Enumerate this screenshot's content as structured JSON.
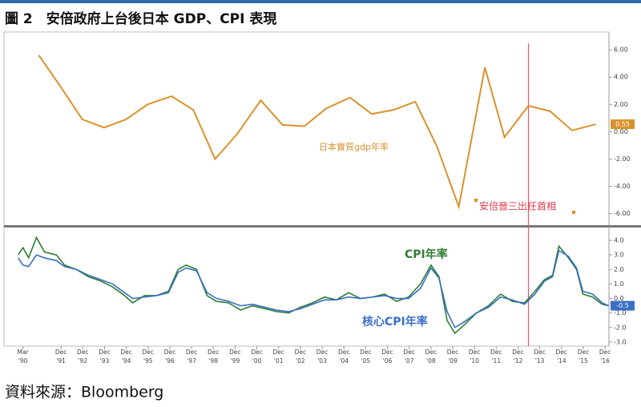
{
  "title": "圖 2　安倍政府上台後日本 GDP、CPI 表現",
  "source": "資料來源：Bloomberg",
  "chart_data": [
    {
      "type": "line",
      "x": [
        1990.9,
        1991.9,
        1992.9,
        1993.9,
        1994.9,
        1995.9,
        1997.0,
        1998.0,
        1999.0,
        2000.0,
        2001.1,
        2002.1,
        2003.1,
        2004.1,
        2005.2,
        2006.2,
        2007.2,
        2008.2,
        2009.2,
        2010.2,
        2011.4,
        2012.3,
        2013.4,
        2014.4,
        2015.4,
        2016.5
      ],
      "series": [
        {
          "name": "日本實質gdp年率",
          "color": "#d9922e",
          "values": [
            5.6,
            3.3,
            0.9,
            0.3,
            0.9,
            2.0,
            2.6,
            1.6,
            -2.0,
            -0.2,
            2.3,
            0.5,
            0.4,
            1.7,
            2.5,
            1.3,
            1.6,
            2.2,
            -1.1,
            -5.5,
            4.7,
            -0.4,
            1.9,
            1.5,
            0.1,
            0.55
          ]
        }
      ],
      "xlim": [
        1989.3,
        2017.1
      ],
      "ylim": [
        -6.9,
        7.3
      ],
      "yticks": [
        {
          "value": 6,
          "label": "6.00"
        },
        {
          "value": 4,
          "label": "4.00"
        },
        {
          "value": 2,
          "label": "2.00"
        },
        {
          "value": 0,
          "label": "0.00"
        },
        {
          "value": -2,
          "label": "-2.00"
        },
        {
          "value": -4,
          "label": "-4.00"
        },
        {
          "value": -6,
          "label": "-6.00"
        }
      ],
      "event": {
        "x": 2013.4,
        "label": "安倍晉三出任首相"
      }
    },
    {
      "type": "line",
      "x": [
        1989.95,
        1990.17,
        1990.43,
        1990.79,
        1991.16,
        1991.71,
        1992.08,
        1992.63,
        1993.18,
        1993.74,
        1994.29,
        1994.84,
        1995.21,
        1995.76,
        1996.31,
        1996.86,
        1997.3,
        1997.67,
        1998.15,
        1998.63,
        1999.07,
        1999.62,
        2000.17,
        2000.72,
        2001.27,
        2001.82,
        2002.38,
        2002.93,
        2003.48,
        2004.03,
        2004.58,
        2005.13,
        2005.68,
        2006.24,
        2006.79,
        2007.34,
        2007.89,
        2008.44,
        2008.92,
        2009.29,
        2009.66,
        2010.02,
        2010.46,
        2011.01,
        2011.57,
        2012.12,
        2012.67,
        2013.22,
        2013.7,
        2014.14,
        2014.51,
        2014.8,
        2015.24,
        2015.61,
        2015.9,
        2016.35,
        2016.79,
        2017.08
      ],
      "series": [
        {
          "name": "CPI年率",
          "color": "#2e7d32",
          "values": [
            3.0,
            3.5,
            2.8,
            4.2,
            3.2,
            3.0,
            2.3,
            2.0,
            1.5,
            1.2,
            0.8,
            0.2,
            -0.3,
            0.2,
            0.2,
            0.5,
            2.0,
            2.3,
            2.0,
            0.2,
            -0.2,
            -0.3,
            -0.8,
            -0.5,
            -0.7,
            -0.9,
            -1.0,
            -0.6,
            -0.3,
            0.1,
            -0.1,
            0.4,
            0.0,
            0.1,
            0.3,
            -0.2,
            0.1,
            1.0,
            2.3,
            1.5,
            -1.5,
            -2.4,
            -1.8,
            -1.0,
            -0.5,
            0.3,
            -0.2,
            -0.3,
            0.5,
            1.3,
            1.6,
            3.6,
            2.8,
            2.0,
            0.3,
            0.1,
            -0.4,
            -0.5
          ]
        },
        {
          "name": "核心CPI年率",
          "color": "#3a6fc4",
          "values": [
            2.8,
            2.3,
            2.2,
            3.0,
            2.8,
            2.6,
            2.2,
            2.0,
            1.6,
            1.3,
            1.0,
            0.4,
            0.0,
            0.1,
            0.2,
            0.4,
            1.8,
            2.1,
            1.9,
            0.4,
            0.0,
            -0.2,
            -0.5,
            -0.4,
            -0.6,
            -0.8,
            -0.9,
            -0.7,
            -0.4,
            -0.1,
            -0.1,
            0.1,
            0.0,
            0.1,
            0.2,
            0.0,
            0.0,
            0.7,
            2.1,
            1.4,
            -0.9,
            -2.0,
            -1.6,
            -1.0,
            -0.6,
            0.1,
            -0.1,
            -0.4,
            0.3,
            1.2,
            1.5,
            3.3,
            2.9,
            2.1,
            0.5,
            0.3,
            -0.3,
            -0.5
          ]
        }
      ],
      "xlim": [
        1989.3,
        2017.1
      ],
      "ylim": [
        -3.28,
        4.83
      ],
      "yticks": [
        {
          "value": 4,
          "label": "4.0"
        },
        {
          "value": 3,
          "label": "3.0"
        },
        {
          "value": 2,
          "label": "2.0"
        },
        {
          "value": 1,
          "label": "1.0"
        },
        {
          "value": 0,
          "label": "0.0"
        },
        {
          "value": -1,
          "label": "-1.0"
        },
        {
          "value": -2,
          "label": "-2.0"
        },
        {
          "value": -3,
          "label": "-3.0"
        }
      ],
      "xticks": [
        {
          "value": 1990.17,
          "label": [
            "Mar",
            "'90"
          ]
        },
        {
          "value": 1991.92,
          "label": [
            "Dec",
            "'91"
          ]
        },
        {
          "value": 1992.92,
          "label": [
            "Dec",
            "'92"
          ]
        },
        {
          "value": 1993.92,
          "label": [
            "Dec",
            "'93"
          ]
        },
        {
          "value": 1994.92,
          "label": [
            "Dec",
            "'94"
          ]
        },
        {
          "value": 1995.92,
          "label": [
            "Dec",
            "'95"
          ]
        },
        {
          "value": 1996.92,
          "label": [
            "Dec",
            "'96"
          ]
        },
        {
          "value": 1997.92,
          "label": [
            "Dec",
            "'97"
          ]
        },
        {
          "value": 1998.92,
          "label": [
            "Dec",
            "'98"
          ]
        },
        {
          "value": 1999.92,
          "label": [
            "Dec",
            "'99"
          ]
        },
        {
          "value": 2000.92,
          "label": [
            "Dec",
            "'00"
          ]
        },
        {
          "value": 2001.92,
          "label": [
            "Dec",
            "'01"
          ]
        },
        {
          "value": 2002.92,
          "label": [
            "Dec",
            "'02"
          ]
        },
        {
          "value": 2003.92,
          "label": [
            "Dec",
            "'03"
          ]
        },
        {
          "value": 2004.92,
          "label": [
            "Dec",
            "'04"
          ]
        },
        {
          "value": 2005.92,
          "label": [
            "Dec",
            "'05"
          ]
        },
        {
          "value": 2006.92,
          "label": [
            "Dec",
            "'06"
          ]
        },
        {
          "value": 2007.92,
          "label": [
            "Dec",
            "'07"
          ]
        },
        {
          "value": 2008.92,
          "label": [
            "Dec",
            "'08"
          ]
        },
        {
          "value": 2009.92,
          "label": [
            "Dec",
            "'09"
          ]
        },
        {
          "value": 2010.92,
          "label": [
            "Dec",
            "'10"
          ]
        },
        {
          "value": 2011.92,
          "label": [
            "Dec",
            "'11"
          ]
        },
        {
          "value": 2012.92,
          "label": [
            "Dec",
            "'12"
          ]
        },
        {
          "value": 2013.92,
          "label": [
            "Dec",
            "'13"
          ]
        },
        {
          "value": 2014.92,
          "label": [
            "Dec",
            "'14"
          ]
        },
        {
          "value": 2015.92,
          "label": [
            "Dec",
            "'15"
          ]
        },
        {
          "value": 2016.92,
          "label": [
            "Dec",
            "'16"
          ]
        }
      ]
    }
  ]
}
